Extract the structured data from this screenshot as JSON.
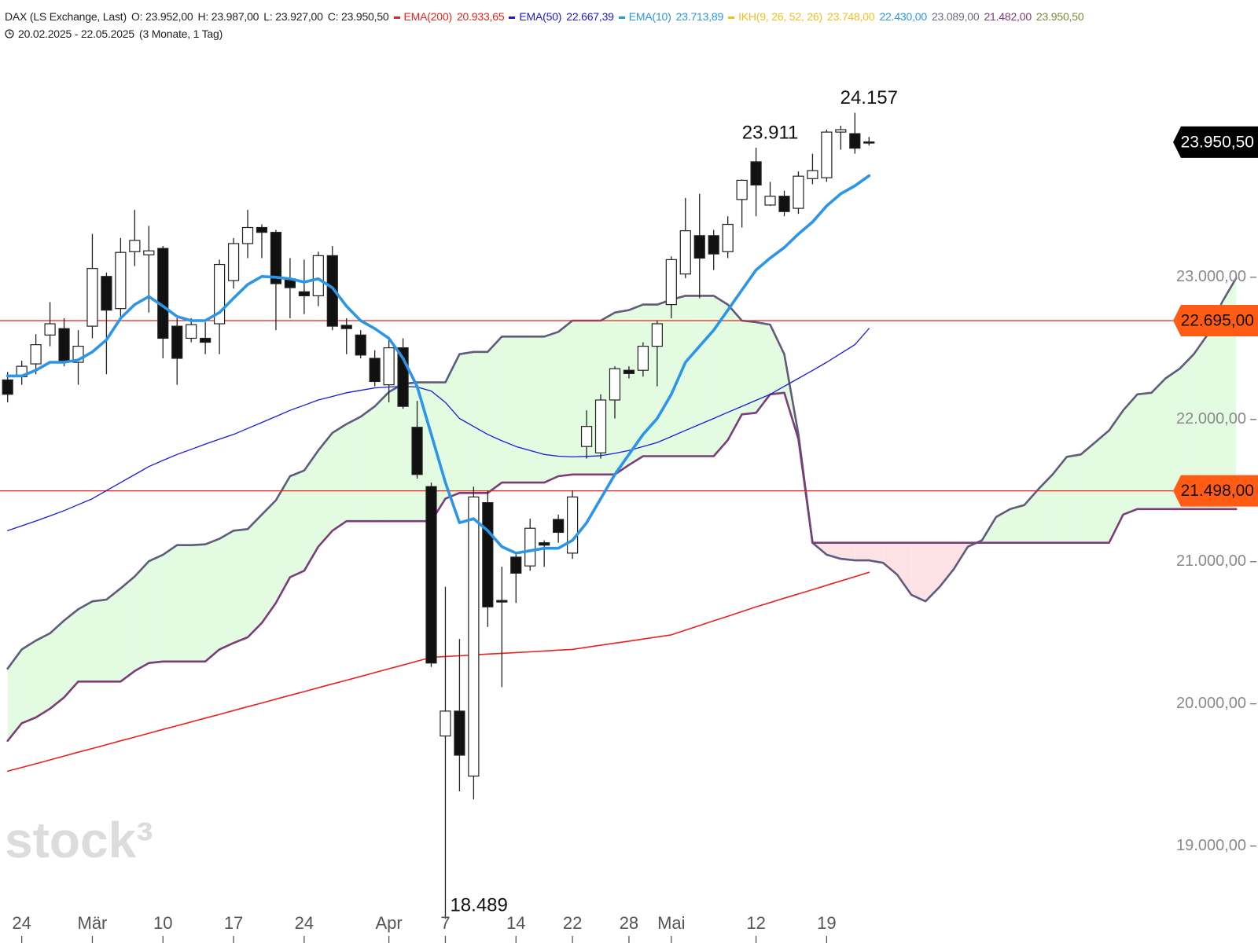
{
  "chart_data": {
    "type": "candlestick",
    "header": {
      "title": "DAX (LS Exchange, Last)",
      "ohlc": [
        "O: 23.952,00",
        "H: 23.987,00",
        "L: 23.927,00",
        "C: 23.950,50"
      ],
      "range": "20.02.2025 - 22.05.2025",
      "period": "(3 Monate, 1 Tag)"
    },
    "watermark": "stock³",
    "ylim": [
      18600,
      24950
    ],
    "yticks": [
      {
        "value": 19000,
        "label": "19.000,00"
      },
      {
        "value": 20000,
        "label": "20.000,00"
      },
      {
        "value": 21000,
        "label": "21.000,00"
      },
      {
        "value": 22000,
        "label": "22.000,00"
      },
      {
        "value": 23000,
        "label": "23.000,00"
      }
    ],
    "categories": [
      null,
      "24",
      null,
      null,
      null,
      null,
      "Mär",
      null,
      null,
      null,
      null,
      "10",
      null,
      null,
      null,
      null,
      "17",
      null,
      null,
      null,
      null,
      "24",
      null,
      null,
      null,
      null,
      null,
      "Apr",
      null,
      null,
      null,
      "7",
      null,
      null,
      null,
      null,
      "14",
      null,
      null,
      null,
      "22",
      null,
      null,
      null,
      "28",
      null,
      null,
      "Mai",
      null,
      null,
      null,
      null,
      null,
      "12",
      null,
      null,
      null,
      null,
      "19",
      null,
      null,
      null,
      null,
      null,
      null,
      null,
      null,
      null,
      null,
      null,
      null,
      null,
      null,
      null,
      null,
      null,
      null,
      null,
      null,
      null,
      null,
      null,
      null,
      null,
      null,
      null,
      null,
      null
    ],
    "candles": {
      "up_color": "#ffffff",
      "down_color": "#111111",
      "open": [
        22278,
        22301,
        22391,
        22594,
        22639,
        22402,
        22656,
        23006,
        22780,
        23180,
        23158,
        23203,
        22656,
        22571,
        22571,
        22673,
        22977,
        23237,
        23350,
        23316,
        22989,
        22898,
        22870,
        23152,
        22662,
        22594,
        22430,
        22244,
        22504,
        21945,
        21528,
        19774,
        19949,
        19492,
        21415,
        20727,
        21032,
        20970,
        21133,
        21297,
        21060,
        21810,
        21765,
        22137,
        22346,
        22346,
        22515,
        22808,
        23023,
        23293,
        23293,
        23180,
        23547,
        23812,
        23508,
        23570,
        23485,
        23694,
        23700,
        24021,
        24010,
        23952,
        null,
        null,
        null,
        null,
        null,
        null,
        null,
        null,
        null,
        null,
        null,
        null,
        null,
        null,
        null,
        null,
        null,
        null,
        null,
        null,
        null,
        null,
        null,
        null,
        null,
        null
      ],
      "high": [
        22334,
        22413,
        22600,
        22825,
        22712,
        22628,
        23305,
        23034,
        23276,
        23474,
        23361,
        23220,
        22712,
        22712,
        22684,
        23124,
        23276,
        23474,
        23372,
        23333,
        23135,
        23124,
        23180,
        23220,
        22712,
        22628,
        22487,
        22571,
        22571,
        22131,
        21556,
        20823,
        20456,
        21528,
        21500,
        20964,
        21060,
        21302,
        21150,
        21331,
        21500,
        22064,
        22177,
        22374,
        22374,
        22543,
        22695,
        23147,
        23558,
        23587,
        23333,
        23429,
        23688,
        23911,
        23671,
        23609,
        23744,
        23869,
        24038,
        24066,
        24157,
        23987,
        null,
        null,
        null,
        null,
        null,
        null,
        null,
        null,
        null,
        null,
        null,
        null,
        null,
        null,
        null,
        null,
        null,
        null,
        null,
        null,
        null,
        null,
        null,
        null,
        null,
        null
      ],
      "low": [
        22120,
        22244,
        22318,
        22515,
        22374,
        22244,
        22571,
        22318,
        22712,
        23079,
        22752,
        22430,
        22244,
        22543,
        22459,
        22459,
        22921,
        23135,
        23135,
        22628,
        22712,
        22741,
        22797,
        22628,
        22459,
        22430,
        22233,
        22120,
        22075,
        21584,
        20259,
        18489,
        19385,
        19328,
        20541,
        20118,
        20710,
        20936,
        20964,
        21133,
        21020,
        21725,
        21725,
        22007,
        22289,
        22301,
        22233,
        22712,
        22994,
        22853,
        23051,
        23135,
        23350,
        23429,
        23502,
        23429,
        23446,
        23654,
        23671,
        23897,
        23869,
        23927,
        null,
        null,
        null,
        null,
        null,
        null,
        null,
        null,
        null,
        null,
        null,
        null,
        null,
        null,
        null,
        null,
        null,
        null,
        null,
        null,
        null,
        null,
        null,
        null,
        null,
        null
      ],
      "close": [
        22177,
        22374,
        22526,
        22673,
        22414,
        22515,
        23062,
        22769,
        23175,
        23259,
        23186,
        22571,
        22430,
        22667,
        22543,
        23090,
        23237,
        23350,
        23316,
        22955,
        22927,
        22870,
        23152,
        22656,
        22639,
        22453,
        22267,
        22504,
        22092,
        21613,
        20287,
        19949,
        19639,
        21455,
        20682,
        20716,
        20919,
        21235,
        21116,
        21206,
        21455,
        21951,
        22137,
        22357,
        22323,
        22515,
        22673,
        23124,
        23327,
        23135,
        23164,
        23372,
        23682,
        23649,
        23570,
        23462,
        23711,
        23750,
        24021,
        24038,
        23908,
        23950.5,
        null,
        null,
        null,
        null,
        null,
        null,
        null,
        null,
        null,
        null,
        null,
        null,
        null,
        null,
        null,
        null,
        null,
        null,
        null,
        null,
        null,
        null,
        null,
        null,
        null,
        null
      ],
      "high_labels": [
        null,
        null,
        null,
        null,
        null,
        null,
        null,
        null,
        null,
        null,
        null,
        null,
        null,
        null,
        null,
        null,
        null,
        null,
        null,
        null,
        null,
        null,
        null,
        null,
        null,
        null,
        null,
        null,
        null,
        null,
        null,
        null,
        null,
        null,
        null,
        null,
        null,
        null,
        null,
        null,
        null,
        null,
        null,
        null,
        null,
        null,
        null,
        null,
        null,
        null,
        null,
        null,
        null,
        "23.911",
        null,
        null,
        null,
        null,
        null,
        null,
        "24.157",
        null,
        null,
        null,
        null,
        null,
        null,
        null,
        null,
        null,
        null,
        null,
        null,
        null,
        null,
        null,
        null,
        null,
        null,
        null,
        null,
        null,
        null,
        null,
        null,
        null,
        null,
        null
      ],
      "low_labels": [
        null,
        null,
        null,
        null,
        null,
        null,
        null,
        null,
        null,
        null,
        null,
        null,
        null,
        null,
        null,
        null,
        null,
        null,
        null,
        null,
        null,
        null,
        null,
        null,
        null,
        null,
        null,
        null,
        null,
        null,
        null,
        "18.489",
        null,
        null,
        null,
        null,
        null,
        null,
        null,
        null,
        null,
        null,
        null,
        null,
        null,
        null,
        null,
        null,
        null,
        null,
        null,
        null,
        null,
        null,
        null,
        null,
        null,
        null,
        null,
        null,
        null,
        null,
        null,
        null,
        null,
        null,
        null,
        null,
        null,
        null,
        null,
        null,
        null,
        null,
        null,
        null,
        null,
        null,
        null,
        null,
        null,
        null,
        null,
        null,
        null,
        null,
        null,
        null
      ]
    },
    "series": [
      {
        "name": "EMA(200)",
        "legend_value": "20.933,65",
        "color": "#e8231f",
        "values": [
          19526,
          19553,
          19579,
          19606,
          19633,
          19660,
          19686,
          19713,
          19740,
          19766,
          19793,
          19820,
          19846,
          19873,
          19900,
          19926,
          19953,
          19980,
          20006,
          20033,
          20060,
          20086,
          20113,
          20140,
          20166,
          20193,
          20220,
          20247,
          20273,
          20300,
          20327,
          20333,
          20338,
          20344,
          20350,
          20355,
          20361,
          20366,
          20372,
          20378,
          20383,
          20398,
          20412,
          20427,
          20441,
          20456,
          20470,
          20485,
          20518,
          20551,
          20584,
          20616,
          20649,
          20682,
          20712,
          20743,
          20773,
          20803,
          20834,
          20864,
          20894,
          20925,
          null,
          null,
          null,
          null,
          null,
          null,
          null,
          null,
          null,
          null,
          null,
          null,
          null,
          null,
          null,
          null,
          null,
          null,
          null,
          null,
          null,
          null,
          null,
          null,
          null,
          null
        ]
      },
      {
        "name": "EMA(50)",
        "legend_value": "22.667,39",
        "color": "#1a1ad6",
        "values": [
          21218,
          21252,
          21286,
          21322,
          21359,
          21401,
          21443,
          21500,
          21556,
          21612,
          21669,
          21712,
          21754,
          21790,
          21827,
          21861,
          21895,
          21937,
          21979,
          22021,
          22064,
          22100,
          22137,
          22162,
          22188,
          22205,
          22222,
          22228,
          22233,
          22228,
          22200,
          22120,
          22007,
          21951,
          21895,
          21850,
          21810,
          21782,
          21754,
          21742,
          21737,
          21740,
          21745,
          21762,
          21782,
          21810,
          21838,
          21880,
          21923,
          21965,
          22007,
          22050,
          22092,
          22135,
          22177,
          22233,
          22289,
          22345,
          22402,
          22464,
          22526,
          22640,
          null,
          null,
          null,
          null,
          null,
          null,
          null,
          null,
          null,
          null,
          null,
          null,
          null,
          null,
          null,
          null,
          null,
          null,
          null,
          null,
          null,
          null,
          null,
          null,
          null,
          null
        ]
      },
      {
        "name": "EMA(10)",
        "legend_value": "23.713,89",
        "color": "#2b95e8",
        "values": [
          22306,
          22306,
          22346,
          22402,
          22402,
          22419,
          22475,
          22560,
          22712,
          22808,
          22865,
          22797,
          22724,
          22695,
          22695,
          22752,
          22853,
          22949,
          23006,
          23000,
          22989,
          22966,
          22989,
          22927,
          22797,
          22695,
          22639,
          22571,
          22430,
          22233,
          21895,
          21556,
          21274,
          21302,
          21218,
          21105,
          21060,
          21077,
          21094,
          21094,
          21150,
          21274,
          21443,
          21613,
          21754,
          21895,
          22007,
          22177,
          22402,
          22515,
          22628,
          22769,
          22910,
          23051,
          23135,
          23209,
          23305,
          23389,
          23502,
          23587,
          23643,
          23714,
          null,
          null,
          null,
          null,
          null,
          null,
          null,
          null,
          null,
          null,
          null,
          null,
          null,
          null,
          null,
          null,
          null,
          null,
          null,
          null,
          null,
          null,
          null,
          null,
          null,
          null
        ]
      }
    ],
    "indicator": {
      "name": "IKH(9, 26, 52, 26)",
      "color": "#f0c020",
      "readings": [
        {
          "label": "23.748,00",
          "color": "#f0c020"
        },
        {
          "label": "22.430,00",
          "color": "#2b95e8"
        },
        {
          "label": "23.089,00",
          "color": "#6b6b8a"
        },
        {
          "label": "21.482,00",
          "color": "#7a3a7a"
        },
        {
          "label": "23.950,50",
          "color": "#7a8a3a"
        }
      ],
      "cloud": {
        "up_fill": "#e3fbe0",
        "down_fill": "#fde2e5",
        "span_a": {
          "color": "#5e5b7c",
          "values": [
            20248,
            20383,
            20445,
            20496,
            20586,
            20665,
            20721,
            20733,
            20812,
            20896,
            21003,
            21049,
            21116,
            21116,
            21122,
            21161,
            21218,
            21229,
            21331,
            21432,
            21601,
            21641,
            21782,
            21906,
            21968,
            22019,
            22092,
            22193,
            22250,
            22261,
            22261,
            22261,
            22459,
            22475,
            22475,
            22583,
            22583,
            22583,
            22583,
            22616,
            22695,
            22695,
            22695,
            22752,
            22769,
            22808,
            22808,
            22842,
            22870,
            22870,
            22870,
            22808,
            22695,
            22684,
            22667,
            22459,
            21895,
            21133,
            21049,
            21020,
            21009,
            21009,
            20992,
            20908,
            20767,
            20721,
            20823,
            20947,
            21105,
            21150,
            21314,
            21370,
            21398,
            21511,
            21613,
            21737,
            21754,
            21838,
            21923,
            22064,
            22177,
            22188,
            22289,
            22357,
            22459,
            22600,
            22825,
            22994
          ]
        },
        "span_b": {
          "color": "#7a3d7a",
          "values": [
            19740,
            19864,
            19904,
            19966,
            20045,
            20157,
            20157,
            20157,
            20157,
            20231,
            20287,
            20298,
            20298,
            20298,
            20298,
            20383,
            20428,
            20468,
            20569,
            20710,
            20891,
            20936,
            21105,
            21218,
            21285,
            21285,
            21285,
            21285,
            21285,
            21285,
            21285,
            21443,
            21483,
            21483,
            21483,
            21556,
            21556,
            21556,
            21556,
            21601,
            21613,
            21613,
            21613,
            21613,
            21680,
            21742,
            21742,
            21742,
            21742,
            21742,
            21742,
            21855,
            22036,
            22047,
            22177,
            22188,
            21861,
            21133,
            21133,
            21133,
            21133,
            21133,
            21133,
            21133,
            21133,
            21133,
            21133,
            21133,
            21133,
            21133,
            21133,
            21133,
            21133,
            21133,
            21133,
            21133,
            21133,
            21133,
            21133,
            21331,
            21370,
            21370,
            21370,
            21370,
            21370,
            21370,
            21370,
            21370
          ]
        }
      }
    },
    "hlines": [
      {
        "value": 22695,
        "label": "22.695,00"
      },
      {
        "value": 21498,
        "label": "21.498,00"
      }
    ],
    "hline_color": "#e8231f",
    "hline_box_color": "#ff5b14",
    "last_price": {
      "value": 23950.5,
      "label": "23.950,50",
      "color": "#000000"
    }
  }
}
